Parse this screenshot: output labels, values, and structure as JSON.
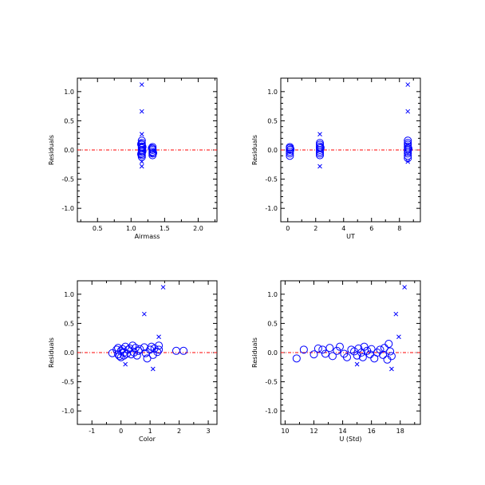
{
  "colors": {
    "marker": "#0000ff",
    "zero_line": "#ff0000",
    "axes": "#000000"
  },
  "chart_data": [
    {
      "type": "scatter",
      "xlabel": "Airmass",
      "ylabel": "Residuals",
      "xlim": [
        0.2,
        2.28
      ],
      "ylim": [
        -1.23,
        1.23
      ],
      "xticks": [
        0.5,
        1.0,
        1.5,
        2.0
      ],
      "xtick_labels": [
        "0.5",
        "1.0",
        "1.5",
        "2.0"
      ],
      "yticks": [
        -1.0,
        -0.5,
        0.0,
        0.5,
        1.0
      ],
      "ytick_labels": [
        "-1.0",
        "-0.5",
        "0.0",
        "0.5",
        "1.0"
      ],
      "reference_line_y": 0.0,
      "series": [
        {
          "marker": "circle",
          "points": [
            [
              1.16,
              0.16
            ],
            [
              1.16,
              0.12
            ],
            [
              1.16,
              0.09
            ],
            [
              1.16,
              0.06
            ],
            [
              1.16,
              0.03
            ],
            [
              1.16,
              0.0
            ],
            [
              1.16,
              -0.03
            ],
            [
              1.16,
              -0.06
            ],
            [
              1.16,
              -0.09
            ],
            [
              1.16,
              -0.12
            ],
            [
              1.17,
              0.05
            ],
            [
              1.17,
              -0.02
            ],
            [
              1.15,
              0.1
            ],
            [
              1.15,
              -0.07
            ],
            [
              1.32,
              0.05
            ],
            [
              1.32,
              0.02
            ],
            [
              1.32,
              0.0
            ],
            [
              1.32,
              -0.03
            ],
            [
              1.32,
              -0.06
            ],
            [
              1.32,
              -0.09
            ],
            [
              1.31,
              0.03
            ],
            [
              1.33,
              -0.05
            ]
          ]
        },
        {
          "marker": "x",
          "points": [
            [
              1.16,
              1.12
            ],
            [
              1.16,
              0.66
            ],
            [
              1.16,
              0.27
            ],
            [
              1.16,
              -0.2
            ],
            [
              1.16,
              -0.28
            ]
          ]
        }
      ]
    },
    {
      "type": "scatter",
      "xlabel": "UT",
      "ylabel": "Residuals",
      "xlim": [
        -0.5,
        9.5
      ],
      "ylim": [
        -1.23,
        1.23
      ],
      "xticks": [
        0,
        2,
        4,
        6,
        8
      ],
      "xtick_labels": [
        "0",
        "2",
        "4",
        "6",
        "8"
      ],
      "yticks": [
        -1.0,
        -0.5,
        0.0,
        0.5,
        1.0
      ],
      "ytick_labels": [
        "-1.0",
        "-0.5",
        "0.0",
        "0.5",
        "1.0"
      ],
      "reference_line_y": 0.0,
      "series": [
        {
          "marker": "circle",
          "points": [
            [
              0.15,
              0.05
            ],
            [
              0.15,
              0.03
            ],
            [
              0.15,
              0.0
            ],
            [
              0.15,
              -0.03
            ],
            [
              0.15,
              -0.06
            ],
            [
              0.15,
              -0.1
            ],
            [
              0.2,
              0.01
            ],
            [
              2.3,
              0.12
            ],
            [
              2.3,
              0.09
            ],
            [
              2.3,
              0.06
            ],
            [
              2.3,
              0.03
            ],
            [
              2.3,
              0.0
            ],
            [
              2.3,
              -0.03
            ],
            [
              2.3,
              -0.06
            ],
            [
              2.3,
              -0.09
            ],
            [
              2.35,
              0.04
            ],
            [
              8.6,
              0.16
            ],
            [
              8.6,
              0.12
            ],
            [
              8.6,
              0.09
            ],
            [
              8.6,
              0.06
            ],
            [
              8.6,
              0.03
            ],
            [
              8.6,
              0.0
            ],
            [
              8.6,
              -0.03
            ],
            [
              8.6,
              -0.06
            ],
            [
              8.6,
              -0.1
            ],
            [
              8.6,
              -0.14
            ],
            [
              8.65,
              0.02
            ]
          ]
        },
        {
          "marker": "x",
          "points": [
            [
              2.3,
              0.27
            ],
            [
              2.3,
              -0.28
            ],
            [
              8.6,
              1.12
            ],
            [
              8.6,
              0.66
            ],
            [
              8.6,
              -0.2
            ]
          ]
        }
      ]
    },
    {
      "type": "scatter",
      "xlabel": "Color",
      "ylabel": "Residuals",
      "xlim": [
        -1.5,
        3.3
      ],
      "ylim": [
        -1.23,
        1.23
      ],
      "xticks": [
        -1,
        0,
        1,
        2,
        3
      ],
      "xtick_labels": [
        "-1",
        "0",
        "1",
        "2",
        "3"
      ],
      "yticks": [
        -1.0,
        -0.5,
        0.0,
        0.5,
        1.0
      ],
      "ytick_labels": [
        "-1.0",
        "-0.5",
        "0.0",
        "0.5",
        "1.0"
      ],
      "reference_line_y": 0.0,
      "series": [
        {
          "marker": "circle",
          "points": [
            [
              -0.3,
              -0.01
            ],
            [
              -0.15,
              0.05
            ],
            [
              -0.1,
              0.08
            ],
            [
              -0.1,
              -0.03
            ],
            [
              -0.05,
              -0.06
            ],
            [
              0.0,
              0.03
            ],
            [
              0.0,
              -0.08
            ],
            [
              0.05,
              0.06
            ],
            [
              0.1,
              0.0
            ],
            [
              0.1,
              -0.05
            ],
            [
              0.15,
              0.1
            ],
            [
              0.2,
              -0.02
            ],
            [
              0.25,
              0.05
            ],
            [
              0.3,
              0.07
            ],
            [
              0.35,
              -0.03
            ],
            [
              0.4,
              0.12
            ],
            [
              0.45,
              0.0
            ],
            [
              0.5,
              0.08
            ],
            [
              0.55,
              -0.05
            ],
            [
              0.6,
              0.03
            ],
            [
              0.65,
              0.06
            ],
            [
              0.8,
              0.09
            ],
            [
              0.85,
              -0.01
            ],
            [
              0.9,
              -0.1
            ],
            [
              1.0,
              0.05
            ],
            [
              1.05,
              0.1
            ],
            [
              1.1,
              -0.04
            ],
            [
              1.15,
              0.07
            ],
            [
              1.25,
              0.01
            ],
            [
              1.3,
              0.12
            ],
            [
              1.3,
              0.05
            ],
            [
              1.9,
              0.03
            ],
            [
              2.15,
              0.03
            ]
          ]
        },
        {
          "marker": "x",
          "points": [
            [
              1.45,
              1.12
            ],
            [
              0.8,
              0.66
            ],
            [
              1.3,
              0.27
            ],
            [
              0.15,
              -0.2
            ],
            [
              1.1,
              -0.28
            ]
          ]
        }
      ]
    },
    {
      "type": "scatter",
      "xlabel": "U (Std)",
      "ylabel": "Residuals",
      "xlim": [
        9.7,
        19.4
      ],
      "ylim": [
        -1.23,
        1.23
      ],
      "xticks": [
        10,
        12,
        14,
        16,
        18
      ],
      "xtick_labels": [
        "10",
        "12",
        "14",
        "16",
        "18"
      ],
      "yticks": [
        -1.0,
        -0.5,
        0.0,
        0.5,
        1.0
      ],
      "ytick_labels": [
        "-1.0",
        "-0.5",
        "0.0",
        "0.5",
        "1.0"
      ],
      "reference_line_y": 0.0,
      "series": [
        {
          "marker": "circle",
          "points": [
            [
              10.8,
              -0.1
            ],
            [
              11.3,
              0.05
            ],
            [
              12.0,
              -0.03
            ],
            [
              12.3,
              0.07
            ],
            [
              12.6,
              0.05
            ],
            [
              12.8,
              -0.02
            ],
            [
              13.1,
              0.08
            ],
            [
              13.3,
              -0.06
            ],
            [
              13.6,
              0.03
            ],
            [
              13.8,
              0.1
            ],
            [
              14.1,
              -0.02
            ],
            [
              14.3,
              -0.08
            ],
            [
              14.6,
              0.05
            ],
            [
              14.8,
              0.02
            ],
            [
              15.0,
              -0.05
            ],
            [
              15.1,
              0.07
            ],
            [
              15.3,
              0.0
            ],
            [
              15.4,
              -0.08
            ],
            [
              15.5,
              0.1
            ],
            [
              15.7,
              0.03
            ],
            [
              15.9,
              -0.03
            ],
            [
              16.0,
              0.06
            ],
            [
              16.2,
              -0.1
            ],
            [
              16.4,
              0.0
            ],
            [
              16.6,
              0.05
            ],
            [
              16.8,
              -0.04
            ],
            [
              16.9,
              0.08
            ],
            [
              17.1,
              -0.12
            ],
            [
              17.2,
              0.15
            ],
            [
              17.3,
              0.02
            ],
            [
              17.4,
              -0.06
            ]
          ]
        },
        {
          "marker": "x",
          "points": [
            [
              18.3,
              1.12
            ],
            [
              17.7,
              0.66
            ],
            [
              17.9,
              0.27
            ],
            [
              15.0,
              -0.2
            ],
            [
              17.4,
              -0.28
            ]
          ]
        }
      ]
    }
  ]
}
